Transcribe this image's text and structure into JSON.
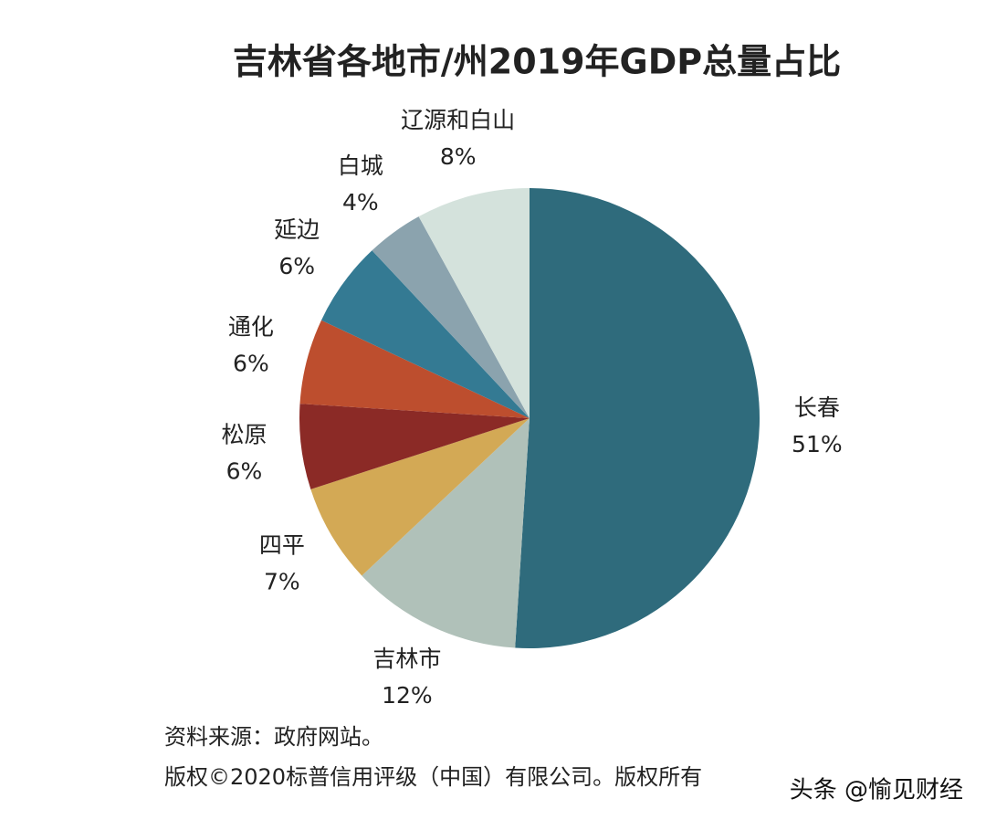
{
  "chart_data": {
    "type": "pie",
    "title": "吉林省各地市/州2019年GDP总量占比",
    "categories": [
      "长春",
      "吉林市",
      "四平",
      "松原",
      "通化",
      "延边",
      "白城",
      "辽源和白山"
    ],
    "values": [
      51,
      12,
      7,
      6,
      6,
      6,
      4,
      8
    ],
    "value_labels": [
      "51%",
      "12%",
      "7%",
      "6%",
      "6%",
      "6%",
      "4%",
      "8%"
    ],
    "colors": [
      "#2f6b7c",
      "#b0c1b9",
      "#d3a955",
      "#8b2a26",
      "#bd4e2e",
      "#347a93",
      "#8ba3ae",
      "#d4e2dc"
    ],
    "source": "资料来源：政府网站。",
    "copyright": "版权©2020标普信用评级（中国）有限公司。版权所有",
    "watermark": "头条 @愉见财经"
  }
}
